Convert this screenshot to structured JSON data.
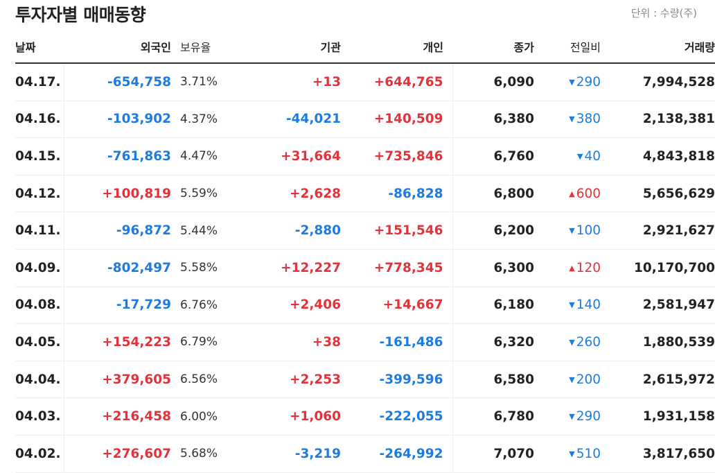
{
  "header": {
    "title": "투자자별 매매동향",
    "unit": "단위 : 수량(주)"
  },
  "columns": {
    "date": "날짜",
    "foreign": "외국인",
    "ratio": "보유율",
    "institution": "기관",
    "individual": "개인",
    "close": "종가",
    "change": "전일비",
    "volume": "거래량"
  },
  "colors": {
    "up": "#e2323a",
    "down": "#1e7be0"
  },
  "rows": [
    {
      "date": "04.17.",
      "foreign": "-654,758",
      "ratio": "3.71%",
      "institution": "+13",
      "individual": "+644,765",
      "close": "6,090",
      "change_dir": "down",
      "change_arrow": "▼",
      "change": "290",
      "volume": "7,994,528"
    },
    {
      "date": "04.16.",
      "foreign": "-103,902",
      "ratio": "4.37%",
      "institution": "-44,021",
      "individual": "+140,509",
      "close": "6,380",
      "change_dir": "down",
      "change_arrow": "▼",
      "change": "380",
      "volume": "2,138,381"
    },
    {
      "date": "04.15.",
      "foreign": "-761,863",
      "ratio": "4.47%",
      "institution": "+31,664",
      "individual": "+735,846",
      "close": "6,760",
      "change_dir": "down",
      "change_arrow": "▼",
      "change": "40",
      "volume": "4,843,818"
    },
    {
      "date": "04.12.",
      "foreign": "+100,819",
      "ratio": "5.59%",
      "institution": "+2,628",
      "individual": "-86,828",
      "close": "6,800",
      "change_dir": "up",
      "change_arrow": "▲",
      "change": "600",
      "volume": "5,656,629"
    },
    {
      "date": "04.11.",
      "foreign": "-96,872",
      "ratio": "5.44%",
      "institution": "-2,880",
      "individual": "+151,546",
      "close": "6,200",
      "change_dir": "down",
      "change_arrow": "▼",
      "change": "100",
      "volume": "2,921,627"
    },
    {
      "date": "04.09.",
      "foreign": "-802,497",
      "ratio": "5.58%",
      "institution": "+12,227",
      "individual": "+778,345",
      "close": "6,300",
      "change_dir": "up",
      "change_arrow": "▲",
      "change": "120",
      "volume": "10,170,700"
    },
    {
      "date": "04.08.",
      "foreign": "-17,729",
      "ratio": "6.76%",
      "institution": "+2,406",
      "individual": "+14,667",
      "close": "6,180",
      "change_dir": "down",
      "change_arrow": "▼",
      "change": "140",
      "volume": "2,581,947"
    },
    {
      "date": "04.05.",
      "foreign": "+154,223",
      "ratio": "6.79%",
      "institution": "+38",
      "individual": "-161,486",
      "close": "6,320",
      "change_dir": "down",
      "change_arrow": "▼",
      "change": "260",
      "volume": "1,880,539"
    },
    {
      "date": "04.04.",
      "foreign": "+379,605",
      "ratio": "6.56%",
      "institution": "+2,253",
      "individual": "-399,596",
      "close": "6,580",
      "change_dir": "down",
      "change_arrow": "▼",
      "change": "200",
      "volume": "2,615,972"
    },
    {
      "date": "04.03.",
      "foreign": "+216,458",
      "ratio": "6.00%",
      "institution": "+1,060",
      "individual": "-222,055",
      "close": "6,780",
      "change_dir": "down",
      "change_arrow": "▼",
      "change": "290",
      "volume": "1,931,158"
    },
    {
      "date": "04.02.",
      "foreign": "+276,607",
      "ratio": "5.68%",
      "institution": "-3,219",
      "individual": "-264,992",
      "close": "7,070",
      "change_dir": "down",
      "change_arrow": "▼",
      "change": "510",
      "volume": "3,817,650"
    }
  ]
}
